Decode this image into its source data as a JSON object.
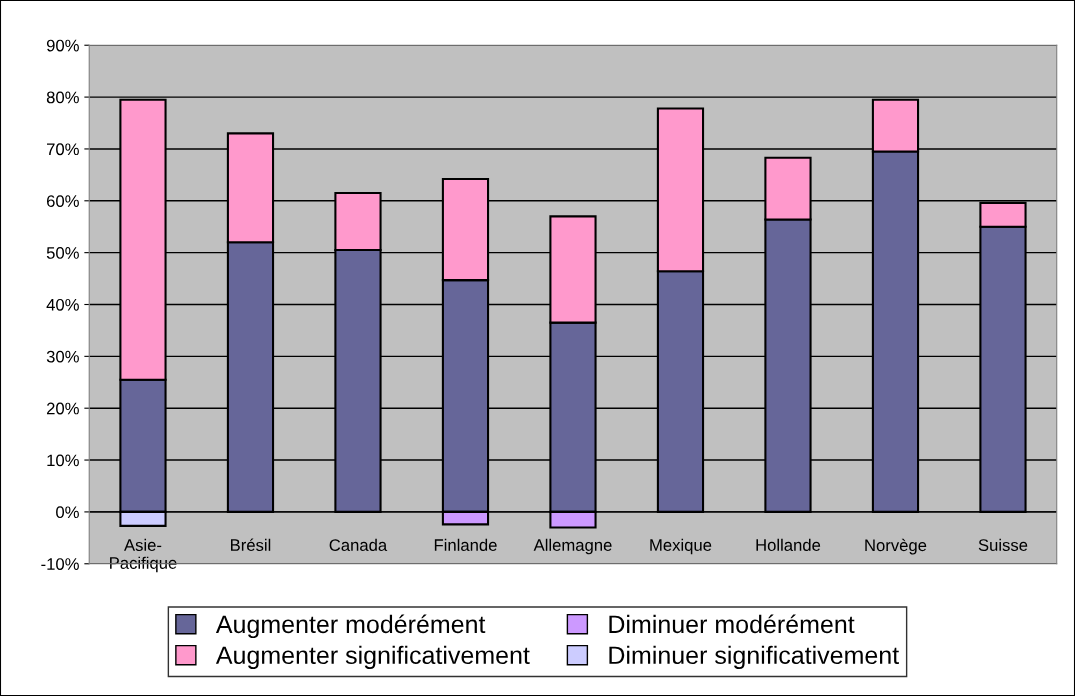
{
  "chart_data": {
    "type": "bar",
    "stacked": true,
    "categories": [
      "Asie-\nPacifique",
      "Brésil",
      "Canada",
      "Finlande",
      "Allemagne",
      "Mexique",
      "Hollande",
      "Norvège",
      "Suisse"
    ],
    "series": [
      {
        "name": "Augmenter modérément",
        "color": "#666699",
        "values": [
          25.5,
          52,
          50.5,
          44.7,
          36.5,
          46.4,
          56.4,
          69.5,
          55
        ]
      },
      {
        "name": "Augmenter significativement",
        "color": "#ff99cc",
        "values": [
          54,
          21,
          11,
          19.5,
          20.5,
          31.4,
          11.9,
          10,
          4.6
        ]
      },
      {
        "name": "Diminuer modérément",
        "color": "#cc99ff",
        "values": [
          null,
          null,
          null,
          -2.4,
          -3,
          null,
          null,
          null,
          null
        ]
      },
      {
        "name": "Diminuer significativement",
        "color": "#ccccff",
        "values": [
          -2.7,
          null,
          null,
          null,
          null,
          null,
          null,
          null,
          null
        ]
      }
    ],
    "ylim": [
      -10,
      90
    ],
    "yticks": [
      {
        "value": -10,
        "label": "-10%"
      },
      {
        "value": 0,
        "label": "0%"
      },
      {
        "value": 10,
        "label": "10%"
      },
      {
        "value": 20,
        "label": "20%"
      },
      {
        "value": 30,
        "label": "30%"
      },
      {
        "value": 40,
        "label": "40%"
      },
      {
        "value": 50,
        "label": "50%"
      },
      {
        "value": 60,
        "label": "60%"
      },
      {
        "value": 70,
        "label": "70%"
      },
      {
        "value": 80,
        "label": "80%"
      },
      {
        "value": 90,
        "label": "90%"
      }
    ],
    "grid": "y",
    "legend": "bottom"
  }
}
